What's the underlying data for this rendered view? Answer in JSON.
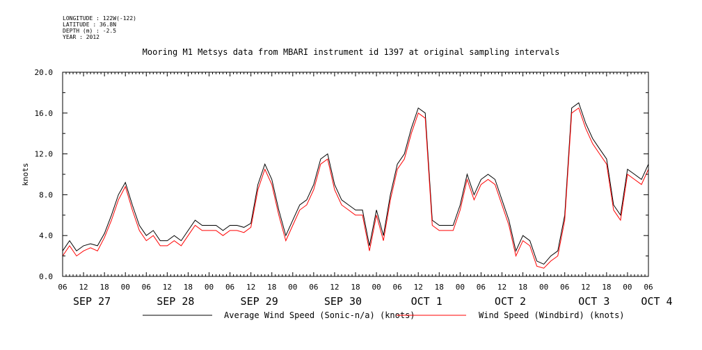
{
  "meta": {
    "longitude": "LONGITUDE : 122W(-122)",
    "latitude": "LATITUDE : 36.8N",
    "depth": "DEPTH (m) : -2.5",
    "year": "YEAR : 2012"
  },
  "chart_data": {
    "type": "line",
    "title": "Mooring M1 Metsys data from MBARI instrument id 1397 at original sampling intervals",
    "ylabel": "knots",
    "xlabel": "",
    "ylim": [
      0,
      20
    ],
    "yticks": [
      "0.0",
      "4.0",
      "8.0",
      "12.0",
      "16.0",
      "20.0"
    ],
    "x_unit": "hours since SEP 27 06:00",
    "xlim": [
      0,
      168
    ],
    "x_hour_ticks": [
      "06",
      "12",
      "18",
      "00",
      "06",
      "12",
      "18",
      "00",
      "06",
      "12",
      "18",
      "00",
      "06",
      "12",
      "18",
      "00",
      "06",
      "12",
      "18",
      "00",
      "06",
      "12",
      "18",
      "00",
      "06",
      "12",
      "18",
      "00",
      "06"
    ],
    "day_labels": [
      {
        "label": "SEP 27",
        "x": 6
      },
      {
        "label": "SEP 28",
        "x": 30
      },
      {
        "label": "SEP 29",
        "x": 54
      },
      {
        "label": "SEP 30",
        "x": 78
      },
      {
        "label": "OCT  1",
        "x": 102
      },
      {
        "label": "OCT  2",
        "x": 126
      },
      {
        "label": "OCT  3",
        "x": 150
      },
      {
        "label": "OCT  4",
        "x": 168
      }
    ],
    "grid": false,
    "legend_position": "bottom",
    "series": [
      {
        "name": "Average Wind Speed (Sonic-n/a) (knots)",
        "color": "#000000",
        "x": [
          0,
          2,
          4,
          6,
          8,
          10,
          12,
          14,
          16,
          18,
          20,
          22,
          24,
          26,
          28,
          30,
          32,
          34,
          36,
          38,
          40,
          42,
          44,
          46,
          48,
          50,
          52,
          54,
          56,
          58,
          60,
          62,
          64,
          66,
          68,
          70,
          72,
          74,
          76,
          78,
          80,
          82,
          84,
          86,
          88,
          90,
          92,
          94,
          96,
          98,
          100,
          102,
          104,
          106,
          108,
          110,
          112,
          114,
          116,
          118,
          120,
          122,
          124,
          126,
          128,
          130,
          132,
          134,
          136,
          138,
          140,
          142,
          144,
          146,
          148,
          150,
          152,
          154,
          156,
          158,
          160,
          162,
          164,
          166,
          168
        ],
        "values": [
          2.5,
          3.5,
          2.5,
          3.0,
          3.2,
          3.0,
          4.2,
          6.0,
          8.0,
          9.2,
          7.0,
          5.0,
          4.0,
          4.5,
          3.5,
          3.5,
          4.0,
          3.5,
          4.5,
          5.5,
          5.0,
          5.0,
          5.0,
          4.5,
          5.0,
          5.0,
          4.8,
          5.2,
          9.0,
          11.0,
          9.5,
          6.5,
          4.0,
          5.5,
          7.0,
          7.5,
          9.0,
          11.5,
          12.0,
          9.0,
          7.5,
          7.0,
          6.5,
          6.5,
          3.0,
          6.5,
          4.0,
          8.0,
          11.0,
          12.0,
          14.5,
          16.5,
          16.0,
          5.5,
          5.0,
          5.0,
          5.0,
          7.0,
          10.0,
          8.0,
          9.5,
          10.0,
          9.5,
          7.5,
          5.5,
          2.5,
          4.0,
          3.5,
          1.5,
          1.2,
          2.0,
          2.5,
          6.0,
          16.5,
          17.0,
          15.0,
          13.5,
          12.5,
          11.5,
          7.0,
          6.0,
          10.5,
          10.0,
          9.5,
          11.0
        ],
        "values_note": "approximate"
      },
      {
        "name": "Wind Speed (Windbird) (knots)",
        "color": "#ff0000",
        "x": [
          0,
          2,
          4,
          6,
          8,
          10,
          12,
          14,
          16,
          18,
          20,
          22,
          24,
          26,
          28,
          30,
          32,
          34,
          36,
          38,
          40,
          42,
          44,
          46,
          48,
          50,
          52,
          54,
          56,
          58,
          60,
          62,
          64,
          66,
          68,
          70,
          72,
          74,
          76,
          78,
          80,
          82,
          84,
          86,
          88,
          90,
          92,
          94,
          96,
          98,
          100,
          102,
          104,
          106,
          108,
          110,
          112,
          114,
          116,
          118,
          120,
          122,
          124,
          126,
          128,
          130,
          132,
          134,
          136,
          138,
          140,
          142,
          144,
          146,
          148,
          150,
          152,
          154,
          156,
          158,
          160,
          162,
          164,
          166,
          168
        ],
        "values": [
          2.0,
          3.0,
          2.0,
          2.5,
          2.8,
          2.5,
          3.8,
          5.5,
          7.5,
          8.8,
          6.5,
          4.5,
          3.5,
          4.0,
          3.0,
          3.0,
          3.5,
          3.0,
          4.0,
          5.0,
          4.5,
          4.5,
          4.5,
          4.0,
          4.5,
          4.5,
          4.3,
          4.8,
          8.5,
          10.5,
          9.0,
          6.0,
          3.5,
          5.0,
          6.5,
          7.0,
          8.5,
          11.0,
          11.5,
          8.5,
          7.0,
          6.5,
          6.0,
          6.0,
          2.5,
          6.0,
          3.5,
          7.5,
          10.5,
          11.5,
          14.0,
          16.0,
          15.5,
          5.0,
          4.5,
          4.5,
          4.5,
          6.5,
          9.5,
          7.5,
          9.0,
          9.5,
          9.0,
          7.0,
          5.0,
          2.0,
          3.5,
          3.0,
          1.0,
          0.8,
          1.5,
          2.0,
          5.5,
          16.0,
          16.5,
          14.5,
          13.0,
          12.0,
          11.0,
          6.5,
          5.5,
          10.0,
          9.5,
          9.0,
          10.5
        ]
      }
    ]
  }
}
